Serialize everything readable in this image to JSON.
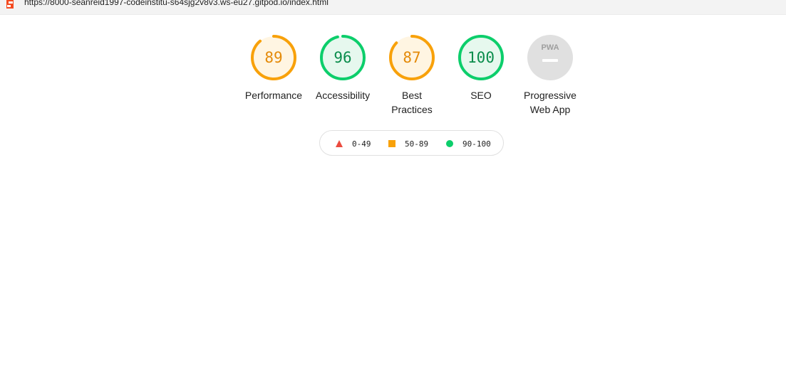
{
  "browser": {
    "url": "https://8000-seanreid1997-codeinstitu-s64sjg2v8v3.ws-eu27.gitpod.io/index.html"
  },
  "gauges": [
    {
      "label": "Performance",
      "label_line2": "",
      "value": "89",
      "score": 0.89,
      "rating": "average"
    },
    {
      "label": "Accessibility",
      "label_line2": "",
      "value": "96",
      "score": 0.96,
      "rating": "pass"
    },
    {
      "label": "Best",
      "label_line2": "Practices",
      "value": "87",
      "score": 0.87,
      "rating": "average"
    },
    {
      "label": "SEO",
      "label_line2": "",
      "value": "100",
      "score": 1.0,
      "rating": "pass"
    },
    {
      "label": "Progressive",
      "label_line2": "Web App",
      "value": "",
      "badge": "PWA",
      "rating": "na"
    }
  ],
  "legend": [
    {
      "range": "0-49",
      "shape": "triangle",
      "color": "#eb4b3f"
    },
    {
      "range": "50-89",
      "shape": "square",
      "color": "#f8a10a"
    },
    {
      "range": "90-100",
      "shape": "circle",
      "color": "#0cce6b"
    }
  ],
  "colors": {
    "pass": "#0cce6b",
    "pass_text": "#0a8d4c",
    "pass_bg": "#e6f8ee",
    "average": "#f8a10a",
    "average_text": "#e48a08",
    "average_bg": "#fff5e2",
    "na_bg": "#e0e0e0",
    "na_text": "#9e9e9e"
  }
}
